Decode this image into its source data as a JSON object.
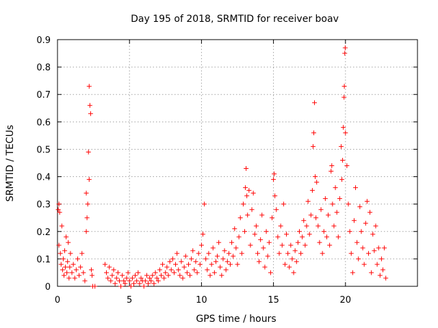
{
  "chart_data": {
    "type": "scatter",
    "title": "Day 195 of 2018, SRMTID for receiver boav",
    "xlabel": "GPS time / hours",
    "ylabel": "SRMTID / TECUs",
    "xlim": [
      0,
      25
    ],
    "ylim": [
      0,
      0.9
    ],
    "xticks": [
      0,
      5,
      10,
      15,
      20
    ],
    "yticks": [
      0,
      0.1,
      0.2,
      0.3,
      0.4,
      0.5,
      0.6,
      0.7,
      0.8,
      0.9
    ],
    "xtick_labels": [
      "0",
      "5",
      "10",
      "15",
      "20"
    ],
    "ytick_labels": [
      "0",
      "0.1",
      "0.2",
      "0.3",
      "0.4",
      "0.5",
      "0.6",
      "0.7",
      "0.8",
      "0.9"
    ],
    "grid": true,
    "marker": "+",
    "color": "#ff0000",
    "series": [
      {
        "name": "SRMTID",
        "points": [
          [
            0.05,
            0.28
          ],
          [
            0.1,
            0.3
          ],
          [
            0.1,
            0.15
          ],
          [
            0.15,
            0.27
          ],
          [
            0.2,
            0.12
          ],
          [
            0.25,
            0.08
          ],
          [
            0.3,
            0.22
          ],
          [
            0.35,
            0.06
          ],
          [
            0.4,
            0.1
          ],
          [
            0.45,
            0.04
          ],
          [
            0.5,
            0.13
          ],
          [
            0.55,
            0.07
          ],
          [
            0.6,
            0.18
          ],
          [
            0.65,
            0.05
          ],
          [
            0.7,
            0.09
          ],
          [
            0.75,
            0.16
          ],
          [
            0.8,
            0.03
          ],
          [
            0.85,
            0.07
          ],
          [
            0.9,
            0.12
          ],
          [
            1.0,
            0.05
          ],
          [
            1.1,
            0.08
          ],
          [
            1.2,
            0.03
          ],
          [
            1.3,
            0.06
          ],
          [
            1.4,
            0.1
          ],
          [
            1.5,
            0.04
          ],
          [
            1.6,
            0.07
          ],
          [
            1.7,
            0.12
          ],
          [
            1.8,
            0.05
          ],
          [
            1.9,
            0.02
          ],
          [
            2.0,
            0.2
          ],
          [
            2.0,
            0.34
          ],
          [
            2.05,
            0.25
          ],
          [
            2.1,
            0.3
          ],
          [
            2.15,
            0.49
          ],
          [
            2.2,
            0.39
          ],
          [
            2.2,
            0.73
          ],
          [
            2.25,
            0.66
          ],
          [
            2.3,
            0.63
          ],
          [
            2.35,
            0.06
          ],
          [
            2.4,
            0.04
          ],
          [
            2.45,
            0.0
          ],
          [
            2.6,
            0.0
          ],
          [
            3.3,
            0.08
          ],
          [
            3.4,
            0.05
          ],
          [
            3.5,
            0.03
          ],
          [
            3.6,
            0.07
          ],
          [
            3.7,
            0.02
          ],
          [
            3.8,
            0.04
          ],
          [
            3.9,
            0.06
          ],
          [
            4.0,
            0.01
          ],
          [
            4.1,
            0.03
          ],
          [
            4.2,
            0.05
          ],
          [
            4.3,
            0.02
          ],
          [
            4.4,
            0.0
          ],
          [
            4.5,
            0.04
          ],
          [
            4.6,
            0.02
          ],
          [
            4.7,
            0.01
          ],
          [
            4.8,
            0.03
          ],
          [
            4.9,
            0.05
          ],
          [
            5.0,
            0.02
          ],
          [
            5.1,
            0.0
          ],
          [
            5.2,
            0.03
          ],
          [
            5.3,
            0.01
          ],
          [
            5.4,
            0.04
          ],
          [
            5.5,
            0.02
          ],
          [
            5.6,
            0.05
          ],
          [
            5.7,
            0.01
          ],
          [
            5.8,
            0.03
          ],
          [
            5.9,
            0.02
          ],
          [
            6.0,
            0.0
          ],
          [
            6.1,
            0.02
          ],
          [
            6.2,
            0.04
          ],
          [
            6.3,
            0.01
          ],
          [
            6.4,
            0.03
          ],
          [
            6.5,
            0.02
          ],
          [
            6.6,
            0.04
          ],
          [
            6.7,
            0.01
          ],
          [
            6.8,
            0.05
          ],
          [
            6.9,
            0.03
          ],
          [
            7.0,
            0.02
          ],
          [
            7.1,
            0.06
          ],
          [
            7.2,
            0.04
          ],
          [
            7.3,
            0.08
          ],
          [
            7.4,
            0.03
          ],
          [
            7.5,
            0.05
          ],
          [
            7.6,
            0.07
          ],
          [
            7.7,
            0.04
          ],
          [
            7.8,
            0.09
          ],
          [
            7.9,
            0.06
          ],
          [
            8.0,
            0.1
          ],
          [
            8.1,
            0.05
          ],
          [
            8.2,
            0.08
          ],
          [
            8.3,
            0.12
          ],
          [
            8.4,
            0.06
          ],
          [
            8.5,
            0.04
          ],
          [
            8.6,
            0.09
          ],
          [
            8.7,
            0.03
          ],
          [
            8.8,
            0.07
          ],
          [
            8.9,
            0.11
          ],
          [
            9.0,
            0.05
          ],
          [
            9.1,
            0.08
          ],
          [
            9.2,
            0.04
          ],
          [
            9.3,
            0.1
          ],
          [
            9.4,
            0.13
          ],
          [
            9.5,
            0.06
          ],
          [
            9.6,
            0.09
          ],
          [
            9.7,
            0.05
          ],
          [
            9.8,
            0.12
          ],
          [
            9.9,
            0.08
          ],
          [
            10.0,
            0.15
          ],
          [
            10.1,
            0.19
          ],
          [
            10.2,
            0.3
          ],
          [
            10.3,
            0.1
          ],
          [
            10.4,
            0.06
          ],
          [
            10.5,
            0.12
          ],
          [
            10.6,
            0.04
          ],
          [
            10.7,
            0.08
          ],
          [
            10.8,
            0.14
          ],
          [
            10.9,
            0.05
          ],
          [
            11.0,
            0.09
          ],
          [
            11.1,
            0.11
          ],
          [
            11.2,
            0.16
          ],
          [
            11.3,
            0.07
          ],
          [
            11.4,
            0.04
          ],
          [
            11.5,
            0.1
          ],
          [
            11.6,
            0.13
          ],
          [
            11.7,
            0.06
          ],
          [
            11.8,
            0.09
          ],
          [
            11.9,
            0.12
          ],
          [
            12.0,
            0.08
          ],
          [
            12.1,
            0.16
          ],
          [
            12.2,
            0.11
          ],
          [
            12.3,
            0.21
          ],
          [
            12.4,
            0.14
          ],
          [
            12.5,
            0.08
          ],
          [
            12.6,
            0.18
          ],
          [
            12.7,
            0.25
          ],
          [
            12.8,
            0.12
          ],
          [
            12.9,
            0.3
          ],
          [
            13.0,
            0.2
          ],
          [
            13.05,
            0.36
          ],
          [
            13.1,
            0.43
          ],
          [
            13.15,
            0.33
          ],
          [
            13.2,
            0.26
          ],
          [
            13.3,
            0.35
          ],
          [
            13.4,
            0.15
          ],
          [
            13.5,
            0.28
          ],
          [
            13.6,
            0.34
          ],
          [
            13.7,
            0.19
          ],
          [
            13.8,
            0.22
          ],
          [
            13.9,
            0.12
          ],
          [
            14.0,
            0.09
          ],
          [
            14.1,
            0.17
          ],
          [
            14.2,
            0.26
          ],
          [
            14.3,
            0.14
          ],
          [
            14.4,
            0.07
          ],
          [
            14.5,
            0.2
          ],
          [
            14.6,
            0.11
          ],
          [
            14.7,
            0.16
          ],
          [
            14.8,
            0.05
          ],
          [
            14.9,
            0.25
          ],
          [
            15.0,
            0.39
          ],
          [
            15.05,
            0.41
          ],
          [
            15.1,
            0.33
          ],
          [
            15.2,
            0.28
          ],
          [
            15.3,
            0.18
          ],
          [
            15.4,
            0.12
          ],
          [
            15.5,
            0.22
          ],
          [
            15.6,
            0.15
          ],
          [
            15.7,
            0.3
          ],
          [
            15.8,
            0.08
          ],
          [
            15.9,
            0.19
          ],
          [
            16.0,
            0.12
          ],
          [
            16.1,
            0.07
          ],
          [
            16.2,
            0.15
          ],
          [
            16.3,
            0.1
          ],
          [
            16.4,
            0.05
          ],
          [
            16.5,
            0.13
          ],
          [
            16.6,
            0.09
          ],
          [
            16.7,
            0.16
          ],
          [
            16.8,
            0.2
          ],
          [
            16.9,
            0.12
          ],
          [
            17.0,
            0.18
          ],
          [
            17.1,
            0.24
          ],
          [
            17.2,
            0.15
          ],
          [
            17.3,
            0.22
          ],
          [
            17.4,
            0.31
          ],
          [
            17.5,
            0.19
          ],
          [
            17.6,
            0.26
          ],
          [
            17.7,
            0.35
          ],
          [
            17.75,
            0.51
          ],
          [
            17.8,
            0.56
          ],
          [
            17.85,
            0.67
          ],
          [
            17.9,
            0.4
          ],
          [
            17.95,
            0.25
          ],
          [
            18.0,
            0.38
          ],
          [
            18.1,
            0.22
          ],
          [
            18.2,
            0.16
          ],
          [
            18.3,
            0.28
          ],
          [
            18.4,
            0.12
          ],
          [
            18.5,
            0.2
          ],
          [
            18.6,
            0.32
          ],
          [
            18.7,
            0.18
          ],
          [
            18.8,
            0.26
          ],
          [
            18.9,
            0.15
          ],
          [
            19.0,
            0.42
          ],
          [
            19.05,
            0.44
          ],
          [
            19.1,
            0.3
          ],
          [
            19.2,
            0.22
          ],
          [
            19.3,
            0.36
          ],
          [
            19.4,
            0.27
          ],
          [
            19.5,
            0.18
          ],
          [
            19.6,
            0.32
          ],
          [
            19.7,
            0.51
          ],
          [
            19.75,
            0.39
          ],
          [
            19.8,
            0.46
          ],
          [
            19.85,
            0.58
          ],
          [
            19.9,
            0.69
          ],
          [
            19.92,
            0.73
          ],
          [
            19.95,
            0.85
          ],
          [
            19.98,
            0.87
          ],
          [
            20.0,
            0.56
          ],
          [
            20.1,
            0.44
          ],
          [
            20.2,
            0.3
          ],
          [
            20.3,
            0.2
          ],
          [
            20.4,
            0.12
          ],
          [
            20.5,
            0.05
          ],
          [
            20.6,
            0.24
          ],
          [
            20.7,
            0.36
          ],
          [
            20.8,
            0.16
          ],
          [
            20.9,
            0.1
          ],
          [
            21.0,
            0.29
          ],
          [
            21.1,
            0.2
          ],
          [
            21.2,
            0.14
          ],
          [
            21.3,
            0.08
          ],
          [
            21.4,
            0.23
          ],
          [
            21.5,
            0.31
          ],
          [
            21.6,
            0.12
          ],
          [
            21.7,
            0.27
          ],
          [
            21.8,
            0.05
          ],
          [
            21.9,
            0.19
          ],
          [
            22.0,
            0.13
          ],
          [
            22.1,
            0.22
          ],
          [
            22.2,
            0.08
          ],
          [
            22.3,
            0.14
          ],
          [
            22.4,
            0.04
          ],
          [
            22.5,
            0.1
          ],
          [
            22.6,
            0.06
          ],
          [
            22.7,
            0.14
          ],
          [
            22.8,
            0.03
          ]
        ]
      }
    ]
  }
}
